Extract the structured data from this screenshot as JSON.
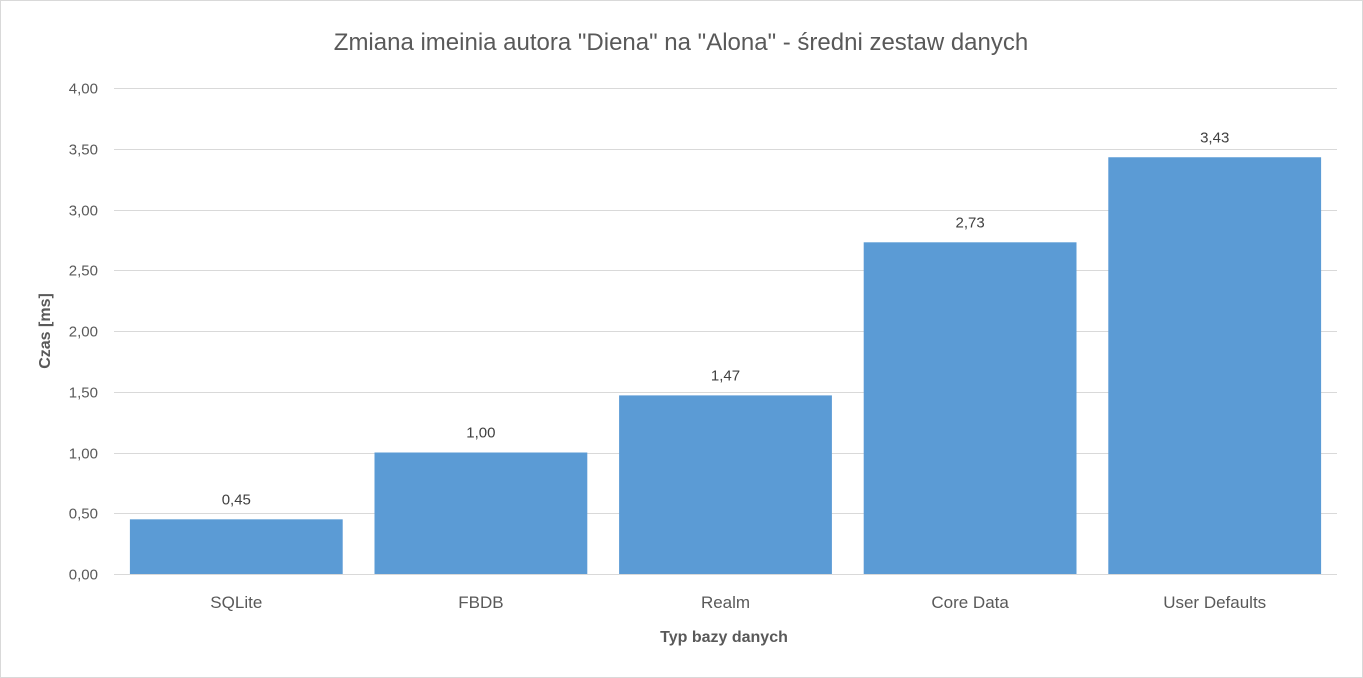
{
  "chart_data": {
    "type": "bar",
    "title": "Zmiana imeinia autora \"Diena\" na \"Alona\" - średni zestaw danych",
    "xlabel": "Typ bazy danych",
    "ylabel": "Czas [ms]",
    "categories": [
      "SQLite",
      "FBDB",
      "Realm",
      "Core Data",
      "User Defaults"
    ],
    "values": [
      0.45,
      1.0,
      1.47,
      2.73,
      3.43
    ],
    "value_labels": [
      "0,45",
      "1,00",
      "1,47",
      "2,73",
      "3,43"
    ],
    "ylim": [
      0,
      4
    ],
    "yticks": [
      0,
      0.5,
      1.0,
      1.5,
      2.0,
      2.5,
      3.0,
      3.5,
      4.0
    ],
    "ytick_labels": [
      "0,00",
      "0,50",
      "1,00",
      "1,50",
      "2,00",
      "2,50",
      "3,00",
      "3,50",
      "4,00"
    ],
    "grid": true,
    "legend": "none",
    "colors": {
      "bar": "#5b9bd5"
    }
  }
}
